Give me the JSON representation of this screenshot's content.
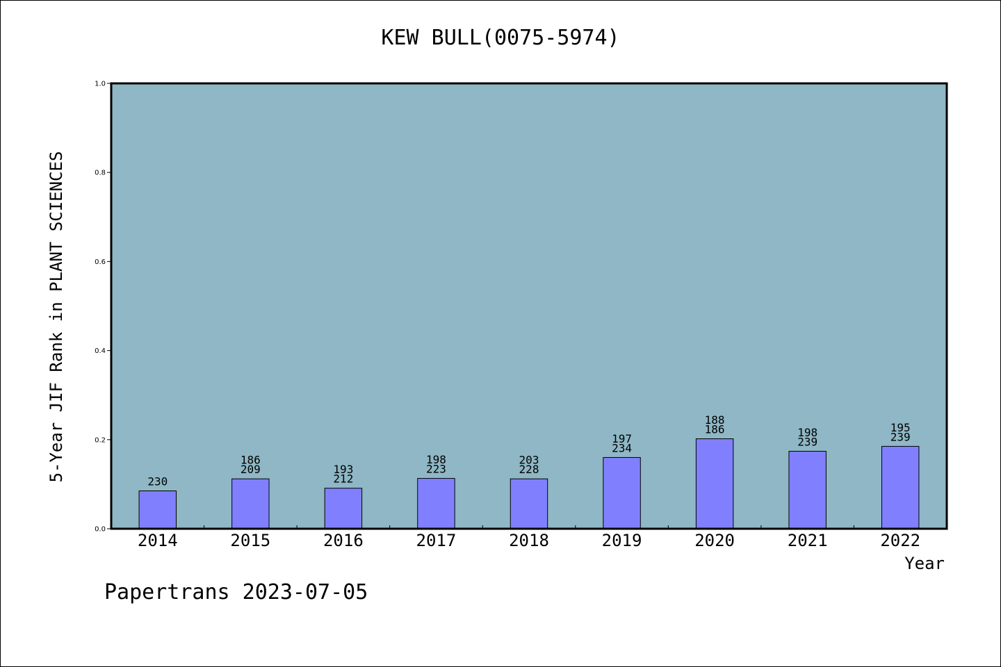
{
  "chart_data": {
    "type": "bar",
    "title": "KEW BULL(0075-5974)",
    "ylabel": "5-Year JIF Rank in PLANT SCIENCES",
    "xlabel": "Year",
    "ylim": [
      0,
      1.0
    ],
    "yticks": [
      "0.0",
      "0.2",
      "0.4",
      "0.6",
      "0.8",
      "1.0"
    ],
    "categories": [
      "2014",
      "2015",
      "2016",
      "2017",
      "2018",
      "2019",
      "2020",
      "2021",
      "2022"
    ],
    "values": [
      0.085,
      0.112,
      0.091,
      0.113,
      0.112,
      0.16,
      0.202,
      0.174,
      0.185
    ],
    "bar_labels": [
      [
        "230"
      ],
      [
        "186",
        "209"
      ],
      [
        "193",
        "212"
      ],
      [
        "198",
        "223"
      ],
      [
        "203",
        "228"
      ],
      [
        "197",
        "234"
      ],
      [
        "188",
        "186"
      ],
      [
        "198",
        "239"
      ],
      [
        "195",
        "239"
      ]
    ],
    "plot_background": "#8fb7c5",
    "bar_color": "#8080ff",
    "grid": false
  },
  "footer": "Papertrans 2023-07-05"
}
